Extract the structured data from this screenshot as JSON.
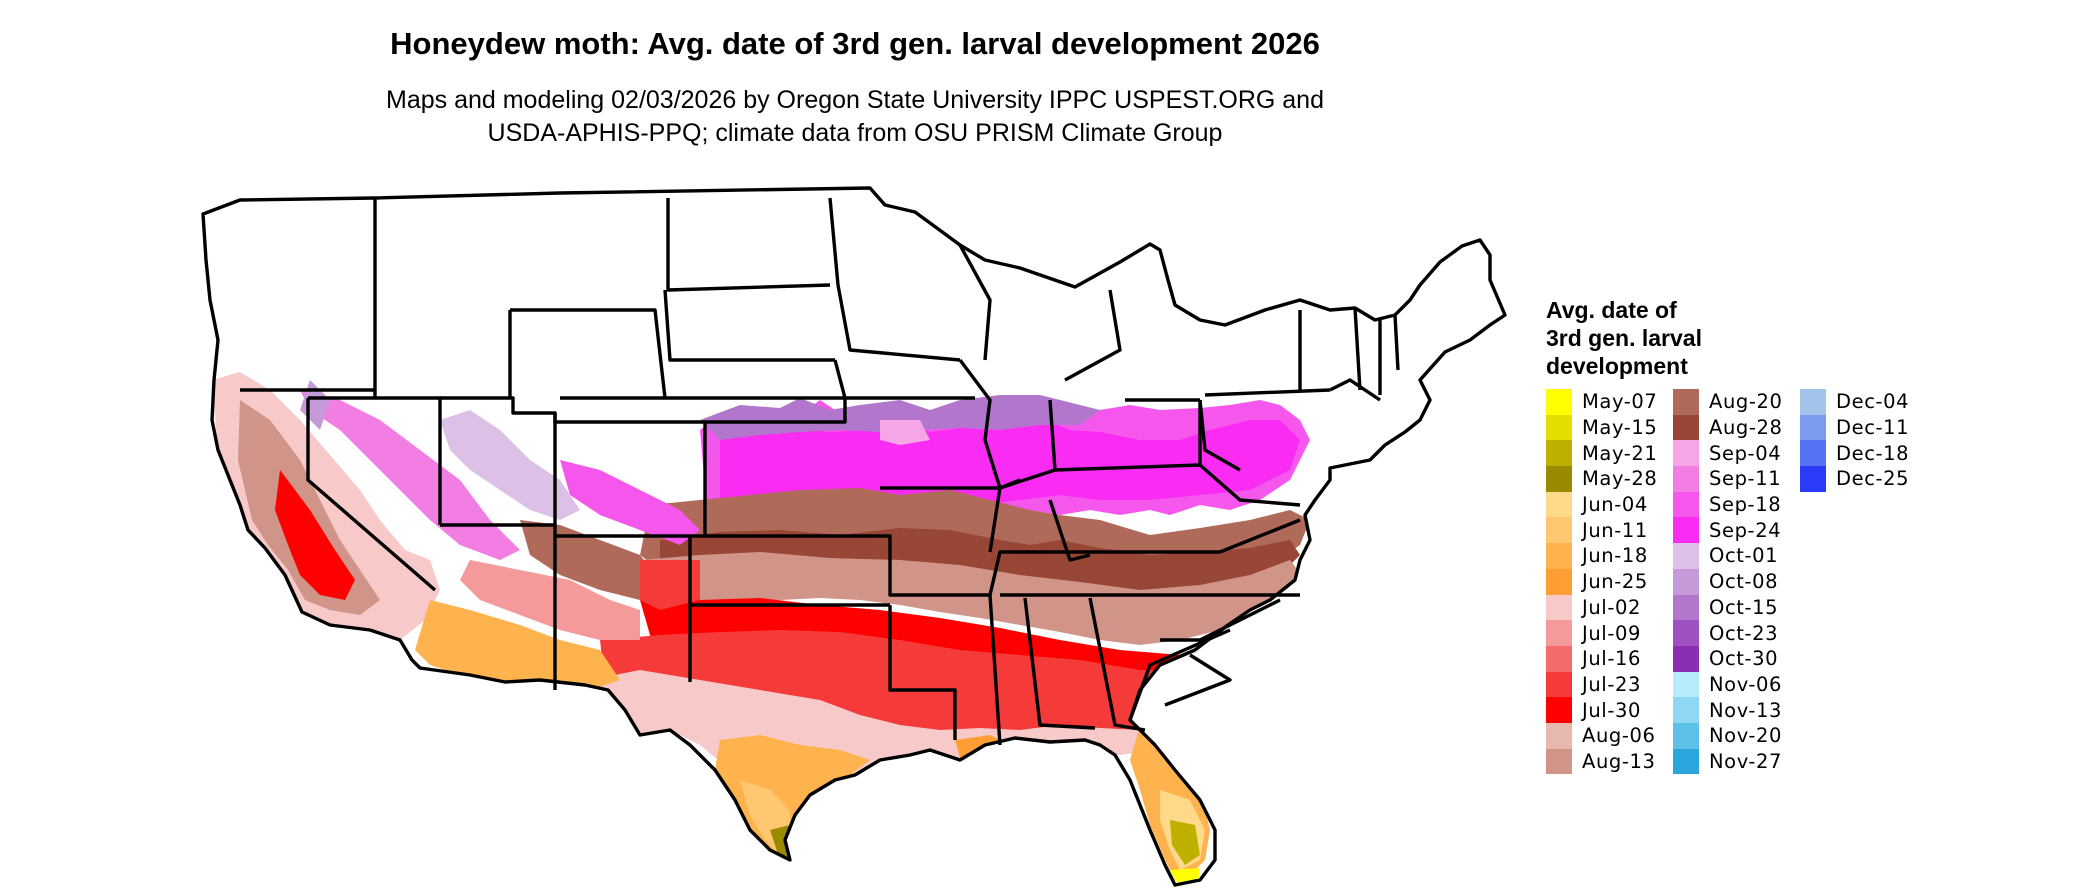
{
  "title": "Honeydew moth: Avg. date of 3rd gen. larval development 2026",
  "subtitle_line1": "Maps and modeling 02/03/2026 by Oregon State University IPPC USPEST.ORG and",
  "subtitle_line2": "USDA-APHIS-PPQ; climate data from OSU PRISM Climate Group",
  "legend": {
    "title_line1": "Avg. date of",
    "title_line2": "3rd gen. larval",
    "title_line3": "development",
    "columns": [
      [
        {
          "label": "May-07",
          "color": "#ffff00"
        },
        {
          "label": "May-15",
          "color": "#e3dd00"
        },
        {
          "label": "May-21",
          "color": "#bfb000"
        },
        {
          "label": "May-28",
          "color": "#9a8a00"
        },
        {
          "label": "Jun-04",
          "color": "#ffd98a"
        },
        {
          "label": "Jun-11",
          "color": "#ffc870"
        },
        {
          "label": "Jun-18",
          "color": "#ffb34e"
        },
        {
          "label": "Jun-25",
          "color": "#ff9f33"
        },
        {
          "label": "Jul-02",
          "color": "#f7c9c9"
        },
        {
          "label": "Jul-09",
          "color": "#f59a9a"
        },
        {
          "label": "Jul-16",
          "color": "#f56a6a"
        },
        {
          "label": "Jul-23",
          "color": "#f53a3a"
        },
        {
          "label": "Jul-30",
          "color": "#ff0000"
        },
        {
          "label": "Aug-06",
          "color": "#e6b8b0"
        },
        {
          "label": "Aug-13",
          "color": "#d09488"
        }
      ],
      [
        {
          "label": "Aug-20",
          "color": "#b06a5a"
        },
        {
          "label": "Aug-28",
          "color": "#984636"
        },
        {
          "label": "Sep-04",
          "color": "#f6a6e6"
        },
        {
          "label": "Sep-11",
          "color": "#f27ee4"
        },
        {
          "label": "Sep-18",
          "color": "#f556ec"
        },
        {
          "label": "Sep-24",
          "color": "#fa2cf4"
        },
        {
          "label": "Oct-01",
          "color": "#dcc0e6"
        },
        {
          "label": "Oct-08",
          "color": "#c69ad8"
        },
        {
          "label": "Oct-15",
          "color": "#b276cc"
        },
        {
          "label": "Oct-23",
          "color": "#9e52c0"
        },
        {
          "label": "Oct-30",
          "color": "#8a2eb2"
        },
        {
          "label": "Nov-06",
          "color": "#b8ecfc"
        },
        {
          "label": "Nov-13",
          "color": "#8ed8f4"
        },
        {
          "label": "Nov-20",
          "color": "#5cc0e8"
        },
        {
          "label": "Nov-27",
          "color": "#2aa6dc"
        }
      ],
      [
        {
          "label": "Dec-04",
          "color": "#a2c4ea"
        },
        {
          "label": "Dec-11",
          "color": "#7c9cf0"
        },
        {
          "label": "Dec-18",
          "color": "#5672f4"
        },
        {
          "label": "Dec-25",
          "color": "#2a3cf8"
        }
      ]
    ]
  },
  "map_colors": {
    "outline": "#000000",
    "unreached": "#ffffff"
  }
}
